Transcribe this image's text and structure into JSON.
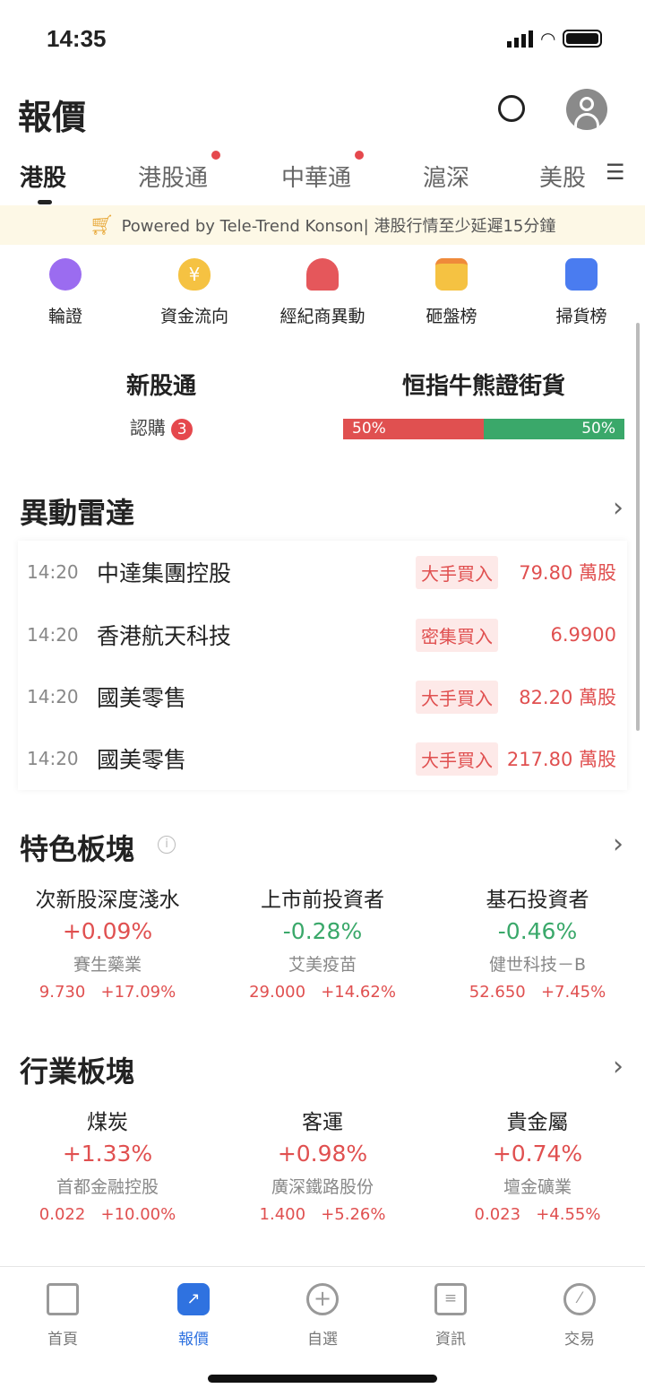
{
  "status": {
    "time": "14:35"
  },
  "header": {
    "title": "報價"
  },
  "tabs": [
    {
      "label": "港股",
      "active": true
    },
    {
      "label": "港股通",
      "dot": true
    },
    {
      "label": "中華通",
      "dot": true
    },
    {
      "label": "滬深"
    },
    {
      "label": "美股"
    }
  ],
  "banner": {
    "text": "Powered by Tele-Trend Konson| 港股行情至少延遲15分鐘"
  },
  "shortcuts": [
    {
      "label": "輪證",
      "icon": "warrant-icon",
      "color": "#9b6cf0"
    },
    {
      "label": "資金流向",
      "icon": "money-bag-icon",
      "color": "#f5c242"
    },
    {
      "label": "經紀商異動",
      "icon": "broker-icon",
      "color": "#e5575b"
    },
    {
      "label": "砸盤榜",
      "icon": "sell-list-icon",
      "color": "#f5c242"
    },
    {
      "label": "掃貨榜",
      "icon": "buy-list-icon",
      "color": "#4a7cf0"
    }
  ],
  "ipo": {
    "title": "新股通",
    "sub_label": "認購",
    "count": "3"
  },
  "bullbear": {
    "title": "恒指牛熊證街貨",
    "bull": "50%",
    "bear": "50%",
    "bull_fraction": 0.5
  },
  "radar": {
    "title": "異動雷達",
    "rows": [
      {
        "time": "14:20",
        "name": "中達集團控股",
        "tag": "大手買入",
        "value": "79.80 萬股"
      },
      {
        "time": "14:20",
        "name": "香港航天科技",
        "tag": "密集買入",
        "value": "6.9900"
      },
      {
        "time": "14:20",
        "name": "國美零售",
        "tag": "大手買入",
        "value": "82.20 萬股"
      },
      {
        "time": "14:20",
        "name": "國美零售",
        "tag": "大手買入",
        "value": "217.80 萬股"
      }
    ]
  },
  "featured": {
    "title": "特色板塊",
    "items": [
      {
        "name": "次新股深度淺水",
        "pct": "+0.09%",
        "dir": "up",
        "stock": "賽生藥業",
        "price": "9.730",
        "chg": "+17.09%"
      },
      {
        "name": "上市前投資者",
        "pct": "-0.28%",
        "dir": "down",
        "stock": "艾美疫苗",
        "price": "29.000",
        "chg": "+14.62%"
      },
      {
        "name": "基石投資者",
        "pct": "-0.46%",
        "dir": "down",
        "stock": "健世科技－B",
        "price": "52.650",
        "chg": "+7.45%"
      }
    ]
  },
  "industry": {
    "title": "行業板塊",
    "items": [
      {
        "name": "煤炭",
        "pct": "+1.33%",
        "dir": "up",
        "stock": "首都金融控股",
        "price": "0.022",
        "chg": "+10.00%"
      },
      {
        "name": "客運",
        "pct": "+0.98%",
        "dir": "up",
        "stock": "廣深鐵路股份",
        "price": "1.400",
        "chg": "+5.26%"
      },
      {
        "name": "貴金屬",
        "pct": "+0.74%",
        "dir": "up",
        "stock": "壇金礦業",
        "price": "0.023",
        "chg": "+4.55%"
      }
    ]
  },
  "tabbar": [
    {
      "label": "首頁"
    },
    {
      "label": "報價",
      "active": true
    },
    {
      "label": "自選"
    },
    {
      "label": "資訊"
    },
    {
      "label": "交易"
    }
  ],
  "colors": {
    "up": "#e05050",
    "down": "#3aa86a",
    "accent": "#2f72e0"
  }
}
